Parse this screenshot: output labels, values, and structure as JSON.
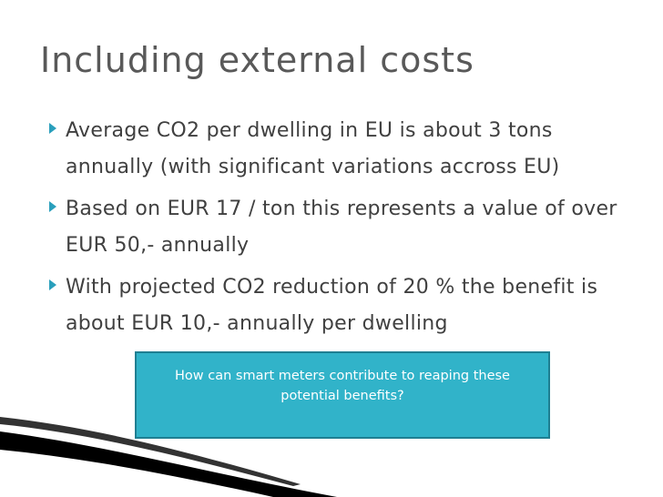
{
  "slide": {
    "title": "Including external costs",
    "bullets": [
      "Average CO2 per dwelling in EU is about 3 tons annually (with significant variations accross EU)",
      "Based on EUR 17 / ton this represents a value of over EUR 50,- annually",
      "With projected CO2 reduction of 20 % the benefit is about EUR 10,- annually per dwelling"
    ],
    "callout": "How can smart meters contribute to reaping these potential benefits?"
  },
  "colors": {
    "title": "#595959",
    "text": "#404040",
    "bullet_marker": "#2a9fbc",
    "callout_fill": "#31b3c9",
    "callout_border": "#1f7f92"
  },
  "icons": {
    "bullet": "triangle-right-icon"
  }
}
